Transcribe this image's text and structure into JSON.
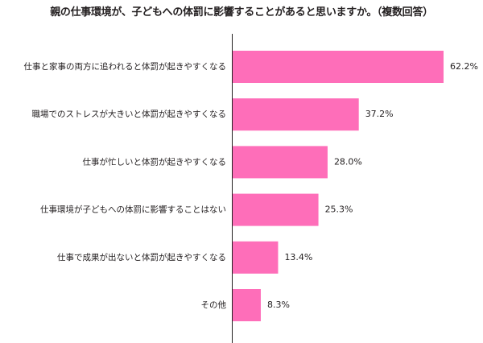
{
  "chart_data": {
    "type": "bar",
    "orientation": "horizontal",
    "title": "親の仕事環境が、子どもへの体罰に影響することがあると思いますか。（複数回答）",
    "categories": [
      "仕事と家事の両方に追われると体罰が起きやすくなる",
      "職場でのストレスが大きいと体罰が起きやすくなる",
      "仕事が忙しいと体罰が起きやすくなる",
      "仕事環境が子どもへの体罰に影響することはない",
      "仕事で成果が出ないと体罰が起きやすくなる",
      "その他"
    ],
    "values": [
      62.2,
      37.2,
      28.0,
      25.3,
      13.4,
      8.3
    ],
    "value_labels": [
      "62.2%",
      "37.2%",
      "28.0%",
      "25.3%",
      "13.4%",
      "8.3%"
    ],
    "unit": "%",
    "xlim": [
      0,
      62.2
    ],
    "bar_color": "#fe6eb9",
    "axis_color": "#231f20",
    "grid": false,
    "legend": "none"
  }
}
